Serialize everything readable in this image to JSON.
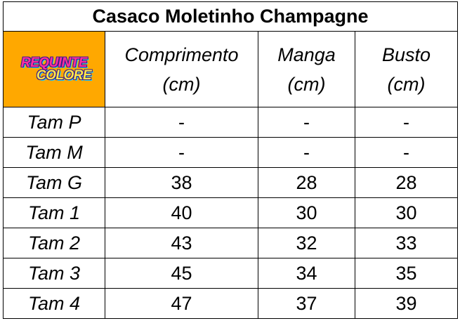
{
  "table": {
    "title": "Casaco Moletinho Champagne",
    "logo": [
      "REQUINTE",
      "COLORE"
    ],
    "columns": [
      {
        "name": "Comprimento",
        "unit": "(cm)"
      },
      {
        "name": "Manga",
        "unit": "(cm)"
      },
      {
        "name": "Busto",
        "unit": "(cm)"
      }
    ],
    "rows": [
      [
        "Tam P",
        "-",
        "-",
        "-"
      ],
      [
        "Tam M",
        "-",
        "-",
        "-"
      ],
      [
        "Tam G",
        38,
        28,
        28
      ],
      [
        "Tam 1",
        40,
        30,
        30
      ],
      [
        "Tam 2",
        43,
        32,
        33
      ],
      [
        "Tam 3",
        45,
        34,
        35
      ],
      [
        "Tam 4",
        47,
        37,
        39
      ]
    ]
  }
}
